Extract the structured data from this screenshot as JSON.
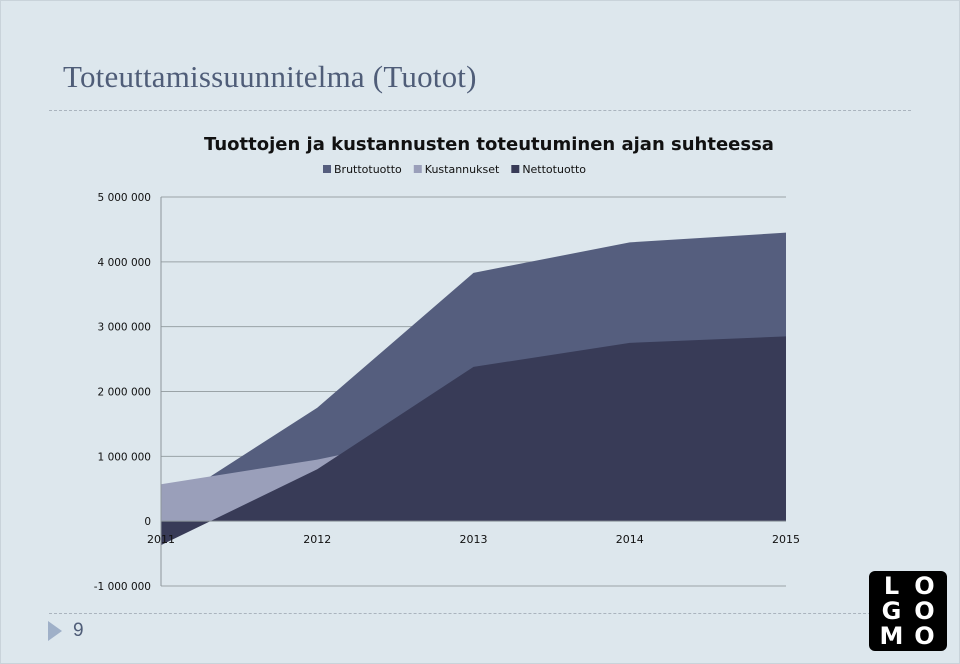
{
  "slide": {
    "title": "Toteuttamissuunnitelma (Tuotot)",
    "page_number": "9",
    "logo_letters": [
      "L",
      "O",
      "G",
      "O",
      "M",
      "O"
    ]
  },
  "chart_data": {
    "type": "area",
    "title": "Tuottojen ja kustannusten toteutuminen ajan suhteessa",
    "x": [
      "2011",
      "2012",
      "2013",
      "2014",
      "2015"
    ],
    "series": [
      {
        "name": "Bruttotuotto",
        "values": [
          200000,
          1750000,
          3830000,
          4300000,
          4450000
        ],
        "color": "#555e7e"
      },
      {
        "name": "Kustannukset",
        "values": [
          570000,
          950000,
          1450000,
          1550000,
          1600000
        ],
        "color": "#9a9fba"
      },
      {
        "name": "Nettotuotto",
        "values": [
          -370000,
          800000,
          2380000,
          2750000,
          2850000
        ],
        "color": "#383b57"
      }
    ],
    "y_ticks": [
      {
        "value": 5000000,
        "label": "5 000 000"
      },
      {
        "value": 4000000,
        "label": "4 000 000"
      },
      {
        "value": 3000000,
        "label": "3 000 000"
      },
      {
        "value": 2000000,
        "label": "2 000 000"
      },
      {
        "value": 1000000,
        "label": "1 000 000"
      },
      {
        "value": 0,
        "label": "0"
      },
      {
        "value": -1000000,
        "label": "-1 000 000"
      }
    ],
    "ylim": [
      -1000000,
      5000000
    ],
    "grid": true,
    "legend_position": "top",
    "xlabel": "",
    "ylabel": ""
  }
}
